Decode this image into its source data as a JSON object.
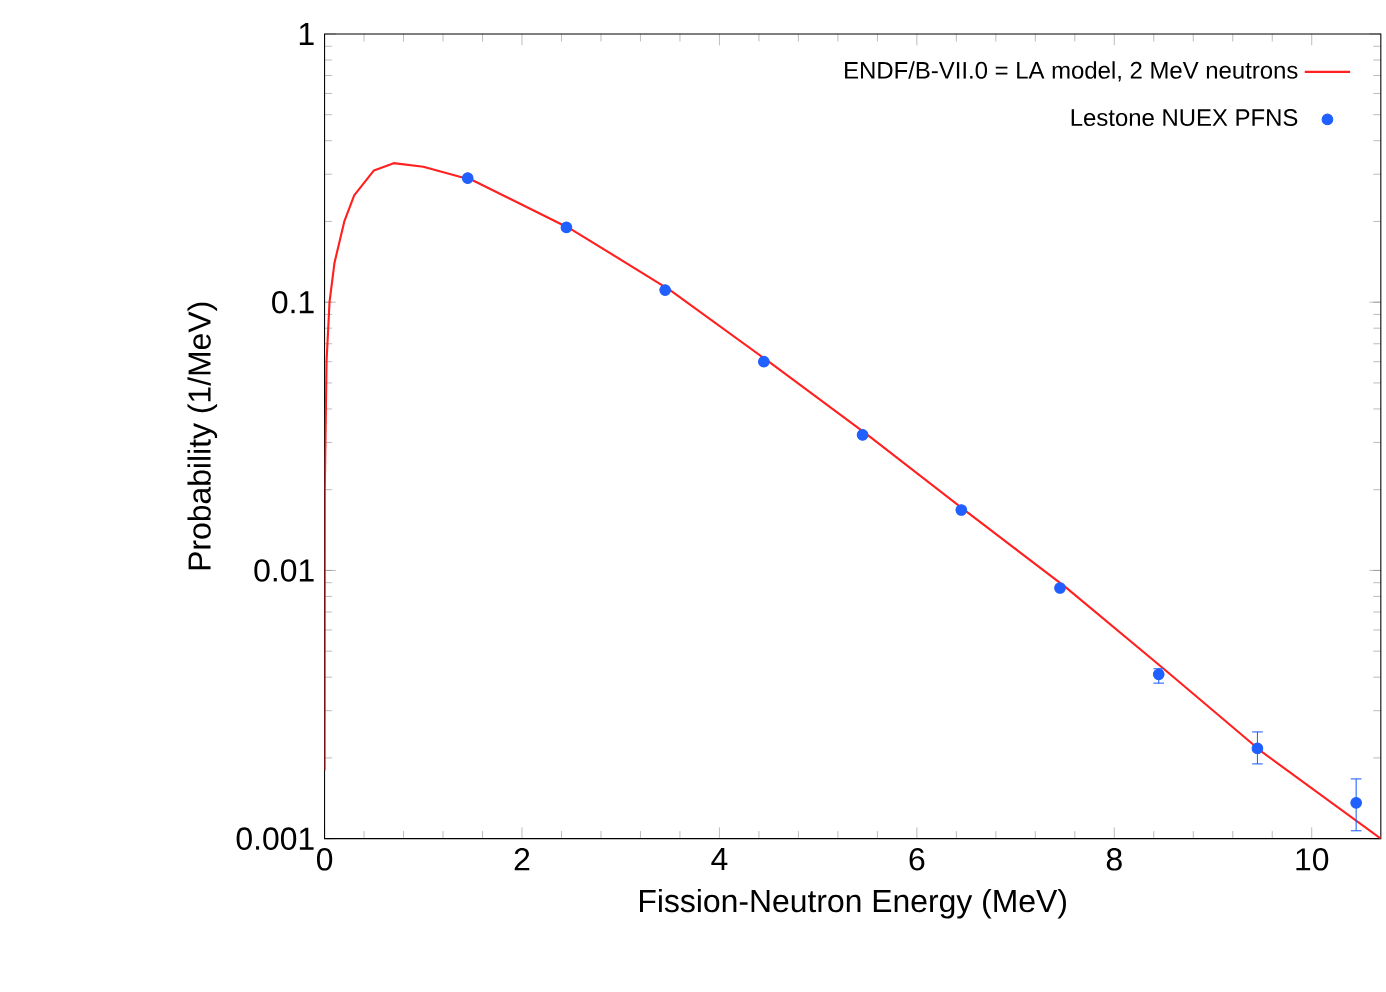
{
  "chart_data": {
    "type": "line",
    "xlabel": "Fission-Neutron Energy (MeV)",
    "ylabel": "Probability (1/MeV)",
    "log": "y",
    "xlim": [
      0,
      10.7
    ],
    "ylim": [
      0.001,
      1
    ],
    "xticks": [
      0,
      2,
      4,
      6,
      8,
      10
    ],
    "yticks": [
      {
        "value": 0.001,
        "label": "0.001"
      },
      {
        "value": 0.01,
        "label": "0.01"
      },
      {
        "value": 0.1,
        "label": "0.1"
      },
      {
        "value": 1,
        "label": "1"
      }
    ],
    "legend": "top right",
    "grid": false,
    "series": [
      {
        "name": "ENDF/B-VII.0 = LA model, 2 MeV neutrons",
        "color": "#ff2020",
        "marker": "none",
        "x": [
          2e-05,
          0.002,
          0.02,
          0.05,
          0.1,
          0.2,
          0.3,
          0.5,
          0.7,
          1.0,
          1.5,
          2.5,
          3.5,
          4.5,
          5.5,
          6.5,
          7.5,
          8.5,
          9.5,
          10.7
        ],
        "values": [
          0.0018,
          0.02,
          0.06,
          0.1,
          0.14,
          0.2,
          0.25,
          0.31,
          0.33,
          0.32,
          0.285,
          0.187,
          0.111,
          0.06,
          0.032,
          0.0166,
          0.0087,
          0.0043,
          0.0021,
          0.001
        ]
      },
      {
        "name": "Lestone NUEX PFNS",
        "color": "#2060ff",
        "type": "scatter",
        "marker": "circle",
        "x": [
          1.45,
          2.45,
          3.45,
          4.45,
          5.45,
          6.45,
          7.45,
          8.45,
          9.45,
          10.45
        ],
        "values": [
          0.29,
          0.19,
          0.111,
          0.06,
          0.032,
          0.0168,
          0.0086,
          0.0041,
          0.00217,
          0.00136
        ],
        "errors": [
          null,
          null,
          null,
          null,
          null,
          null,
          null,
          [
            0.0038,
            0.0043
          ],
          [
            0.0019,
            0.0025
          ],
          [
            0.00107,
            0.00167
          ]
        ]
      }
    ]
  }
}
